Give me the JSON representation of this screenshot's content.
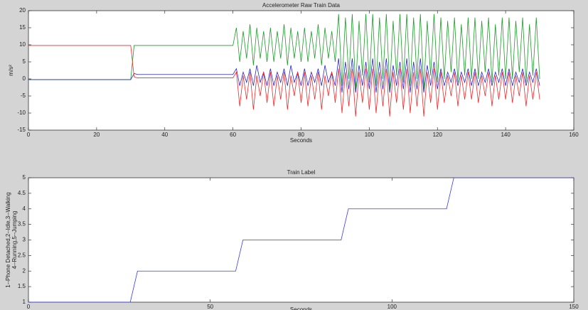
{
  "chart_data": [
    {
      "type": "line",
      "title": "Accelerometer Raw Train Data",
      "xlabel": "Seconds",
      "ylabel": "m/s²",
      "xlim": [
        0,
        160
      ],
      "xticks": [
        0,
        20,
        40,
        60,
        80,
        100,
        120,
        140,
        160
      ],
      "ylim": [
        -15,
        20
      ],
      "yticks": [
        -15,
        -10,
        -5,
        0,
        5,
        10,
        15,
        20
      ],
      "x": [
        0,
        1,
        2,
        3,
        4,
        5,
        6,
        7,
        8,
        9,
        10,
        11,
        12,
        13,
        14,
        15,
        16,
        17,
        18,
        19,
        20,
        21,
        22,
        23,
        24,
        25,
        26,
        27,
        28,
        29,
        30,
        31,
        32,
        33,
        34,
        35,
        36,
        37,
        38,
        39,
        40,
        41,
        42,
        43,
        44,
        45,
        46,
        47,
        48,
        49,
        50,
        51,
        52,
        53,
        54,
        55,
        56,
        57,
        58,
        59,
        60,
        61,
        62,
        63,
        64,
        65,
        66,
        67,
        68,
        69,
        70,
        71,
        72,
        73,
        74,
        75,
        76,
        77,
        78,
        79,
        80,
        81,
        82,
        83,
        84,
        85,
        86,
        87,
        88,
        89,
        90,
        91,
        92,
        93,
        94,
        95,
        96,
        97,
        98,
        99,
        100,
        101,
        102,
        103,
        104,
        105,
        106,
        107,
        108,
        109,
        110,
        111,
        112,
        113,
        114,
        115,
        116,
        117,
        118,
        119,
        120,
        121,
        122,
        123,
        124,
        125,
        126,
        127,
        128,
        129,
        130,
        131,
        132,
        133,
        134,
        135,
        136,
        137,
        138,
        139,
        140,
        141,
        142,
        143,
        144,
        145,
        146,
        147,
        148,
        149,
        150
      ],
      "series": [
        {
          "color": "#1e9a2a",
          "values": [
            -0.2,
            -0.2,
            -0.2,
            -0.2,
            -0.2,
            -0.2,
            -0.2,
            -0.2,
            -0.2,
            -0.2,
            -0.2,
            -0.2,
            -0.2,
            -0.2,
            -0.2,
            -0.2,
            -0.2,
            -0.2,
            -0.2,
            -0.2,
            -0.2,
            -0.2,
            -0.2,
            -0.2,
            -0.2,
            -0.2,
            -0.2,
            -0.2,
            -0.2,
            -0.2,
            -0.2,
            9.8,
            9.8,
            9.8,
            9.8,
            9.8,
            9.8,
            9.8,
            9.8,
            9.8,
            9.8,
            9.8,
            9.8,
            9.8,
            9.8,
            9.8,
            9.8,
            9.8,
            9.8,
            9.8,
            9.8,
            9.8,
            9.8,
            9.8,
            9.8,
            9.8,
            9.8,
            9.8,
            9.8,
            9.8,
            9.8,
            15,
            5,
            14,
            6,
            16,
            4,
            15,
            6,
            14,
            5,
            15,
            5,
            14,
            6,
            16,
            4,
            15,
            6,
            14,
            5,
            15,
            5,
            14,
            6,
            16,
            4,
            15,
            6,
            14,
            5,
            19,
            -2,
            18,
            0,
            19,
            -3,
            17,
            1,
            19,
            -1,
            19,
            -2,
            18,
            0,
            19,
            -3,
            17,
            1,
            19,
            -1,
            19,
            -2,
            18,
            0,
            19,
            -3,
            17,
            1,
            19,
            -1,
            18,
            0,
            17,
            2,
            18,
            -1,
            16,
            1,
            18,
            0,
            18,
            0,
            17,
            2,
            18,
            -1,
            16,
            1,
            18,
            0,
            18,
            0,
            17,
            2,
            18,
            -1,
            16,
            1,
            18,
            0
          ]
        },
        {
          "color": "#2424d0",
          "values": [
            -0.2,
            -0.2,
            -0.2,
            -0.2,
            -0.2,
            -0.2,
            -0.2,
            -0.2,
            -0.2,
            -0.2,
            -0.2,
            -0.2,
            -0.2,
            -0.2,
            -0.2,
            -0.2,
            -0.2,
            -0.2,
            -0.2,
            -0.2,
            -0.2,
            -0.2,
            -0.2,
            -0.2,
            -0.2,
            -0.2,
            -0.2,
            -0.2,
            -0.2,
            -0.2,
            -0.2,
            1.6,
            1.3,
            1.3,
            1.3,
            1.3,
            1.3,
            1.3,
            1.3,
            1.3,
            1.3,
            1.3,
            1.3,
            1.3,
            1.3,
            1.3,
            1.3,
            1.3,
            1.3,
            1.3,
            1.3,
            1.3,
            1.3,
            1.3,
            1.3,
            1.3,
            1.3,
            1.3,
            1.3,
            1.3,
            1.3,
            3,
            -2,
            2,
            -1,
            3,
            -2,
            4,
            -1,
            2,
            -2,
            3,
            -2,
            2,
            -1,
            3,
            -2,
            4,
            -1,
            2,
            -2,
            3,
            -2,
            2,
            -1,
            3,
            -2,
            4,
            -1,
            2,
            -2,
            6,
            -4,
            5,
            -3,
            6,
            -4,
            4,
            -2,
            5,
            -3,
            6,
            -4,
            5,
            -3,
            6,
            -4,
            4,
            -2,
            5,
            -3,
            6,
            -4,
            5,
            -3,
            6,
            -4,
            4,
            -2,
            5,
            -3,
            3,
            -2,
            2,
            -1,
            3,
            -2,
            2,
            -1,
            3,
            -2,
            3,
            -2,
            2,
            -1,
            3,
            -2,
            2,
            -1,
            3,
            -2,
            3,
            -2,
            2,
            -1,
            3,
            -2,
            2,
            -1,
            3,
            -2
          ]
        },
        {
          "color": "#f02828",
          "values": [
            9.8,
            9.8,
            9.8,
            9.8,
            9.8,
            9.8,
            9.8,
            9.8,
            9.8,
            9.8,
            9.8,
            9.8,
            9.8,
            9.8,
            9.8,
            9.8,
            9.8,
            9.8,
            9.8,
            9.8,
            9.8,
            9.8,
            9.8,
            9.8,
            9.8,
            9.8,
            9.8,
            9.8,
            9.8,
            9.8,
            9.8,
            0.6,
            0.3,
            0.3,
            0.3,
            0.3,
            0.3,
            0.3,
            0.3,
            0.3,
            0.3,
            0.3,
            0.3,
            0.3,
            0.3,
            0.3,
            0.3,
            0.3,
            0.3,
            0.3,
            0.3,
            0.3,
            0.3,
            0.3,
            0.3,
            0.3,
            0.3,
            0.3,
            0.3,
            0.3,
            0.3,
            2,
            -8,
            1,
            -6,
            2,
            -9,
            1,
            -5,
            2,
            -7,
            2,
            -8,
            1,
            -6,
            2,
            -9,
            1,
            -5,
            2,
            -7,
            2,
            -8,
            1,
            -6,
            2,
            -9,
            1,
            -5,
            2,
            -7,
            3,
            -10,
            2,
            -8,
            3,
            -11,
            2,
            -7,
            3,
            -9,
            3,
            -10,
            2,
            -8,
            3,
            -11,
            2,
            -7,
            3,
            -9,
            3,
            -10,
            2,
            -8,
            3,
            -11,
            2,
            -7,
            3,
            -9,
            2,
            -7,
            1,
            -5,
            2,
            -8,
            1,
            -6,
            2,
            -6,
            2,
            -7,
            1,
            -5,
            2,
            -8,
            1,
            -6,
            2,
            -6,
            2,
            -7,
            1,
            -5,
            2,
            -8,
            1,
            -6,
            2,
            -6
          ]
        }
      ]
    },
    {
      "type": "line",
      "title": "Train Label",
      "xlabel": "Seconds",
      "ylabel": [
        "1--Phone Detached,2--Idle,3--Walking",
        "4--Running,5--Jumping"
      ],
      "xlim": [
        0,
        150
      ],
      "xticks": [
        0,
        50,
        100,
        150
      ],
      "ylim": [
        1,
        5
      ],
      "yticks": [
        1,
        1.5,
        2,
        2.5,
        3,
        3.5,
        4,
        4.5,
        5
      ],
      "x": [
        0,
        28,
        30,
        57,
        59,
        86,
        88,
        115,
        117,
        150
      ],
      "series": [
        {
          "color": "#3a3af0",
          "values": [
            1,
            1,
            2,
            2,
            3,
            3,
            4,
            4,
            5,
            5
          ]
        }
      ]
    }
  ]
}
